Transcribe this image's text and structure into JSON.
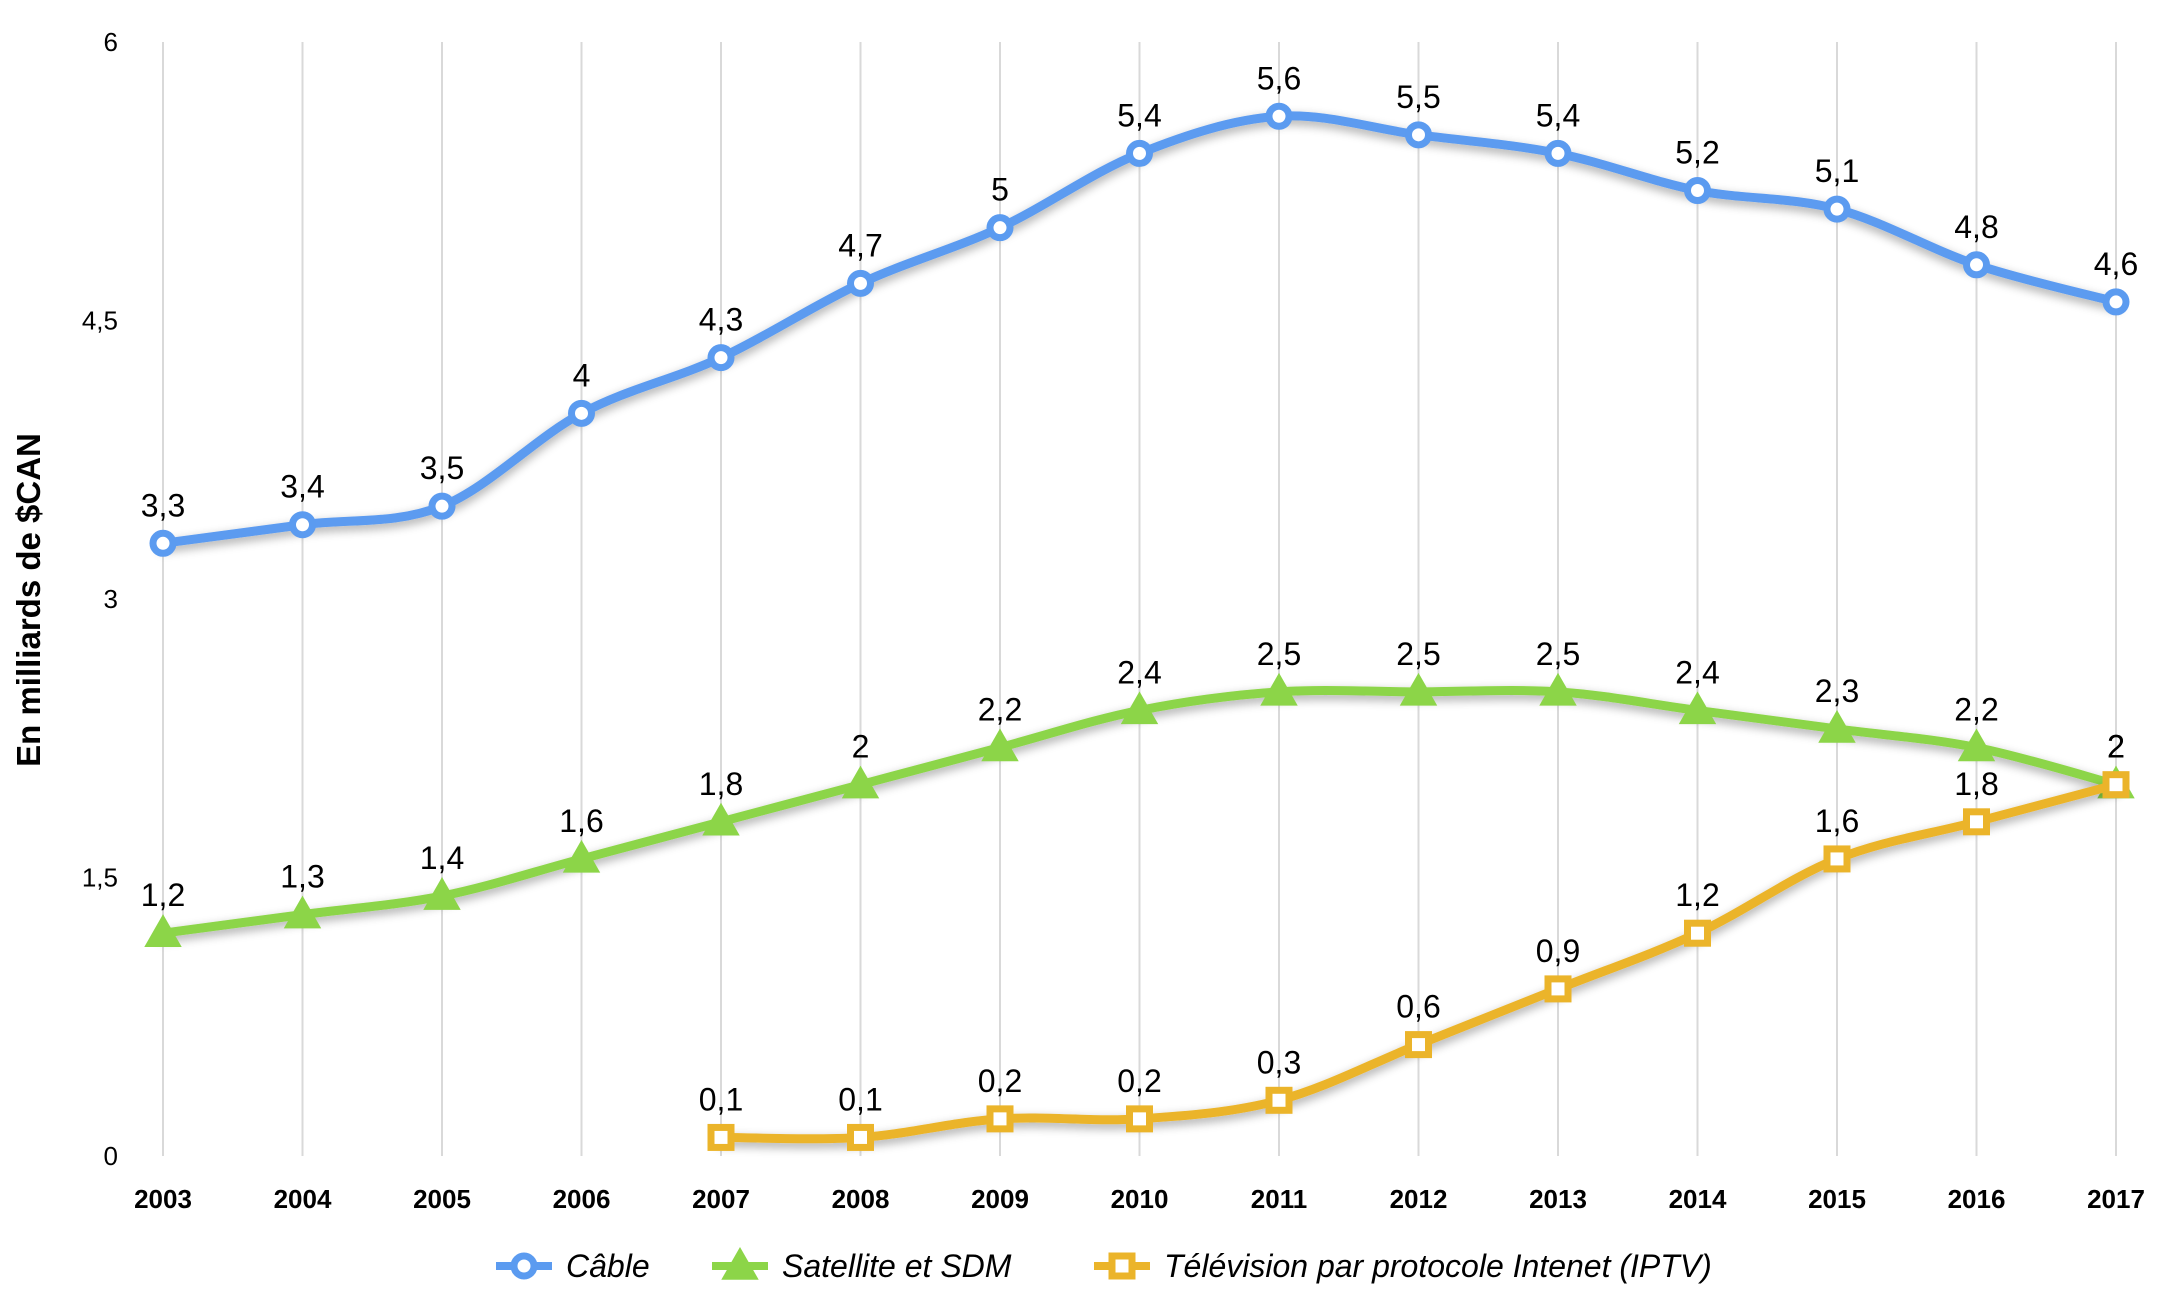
{
  "chart_data": {
    "type": "line",
    "title": "",
    "xlabel": "",
    "ylabel": "En milliards de $CAN",
    "categories": [
      "2003",
      "2004",
      "2005",
      "2006",
      "2007",
      "2008",
      "2009",
      "2010",
      "2011",
      "2012",
      "2013",
      "2014",
      "2015",
      "2016",
      "2017"
    ],
    "ylim": [
      0,
      6
    ],
    "yticks": [
      0,
      1.5,
      3,
      4.5,
      6
    ],
    "ytick_labels": [
      "0",
      "1,5",
      "3",
      "4,5",
      "6"
    ],
    "grid": "vertical",
    "legend_position": "bottom",
    "series": [
      {
        "name": "Câble",
        "color": "#5B9BF0",
        "marker": "circle",
        "values": [
          3.3,
          3.4,
          3.5,
          4,
          4.3,
          4.7,
          5,
          5.4,
          5.6,
          5.5,
          5.4,
          5.2,
          5.1,
          4.8,
          4.6
        ],
        "labels": [
          "3,3",
          "3,4",
          "3,5",
          "4",
          "4,3",
          "4,7",
          "5",
          "5,4",
          "5,6",
          "5,5",
          "5,4",
          "5,2",
          "5,1",
          "4,8",
          "4,6"
        ]
      },
      {
        "name": "Satellite et SDM",
        "color": "#8CD548",
        "marker": "triangle",
        "values": [
          1.2,
          1.3,
          1.4,
          1.6,
          1.8,
          2,
          2.2,
          2.4,
          2.5,
          2.5,
          2.5,
          2.4,
          2.3,
          2.2,
          2
        ],
        "labels": [
          "1,2",
          "1,3",
          "1,4",
          "1,6",
          "1,8",
          "2",
          "2,2",
          "2,4",
          "2,5",
          "2,5",
          "2,5",
          "2,4",
          "2,3",
          "2,2",
          "2"
        ]
      },
      {
        "name": "Télévision par protocole Intenet (IPTV)",
        "color": "#EBB42A",
        "marker": "square",
        "values": [
          null,
          null,
          null,
          null,
          0.1,
          0.1,
          0.2,
          0.2,
          0.3,
          0.6,
          0.9,
          1.2,
          1.6,
          1.8,
          2
        ],
        "labels": [
          "",
          "",
          "",
          "",
          "0,1",
          "0,1",
          "0,2",
          "0,2",
          "0,3",
          "0,6",
          "0,9",
          "1,2",
          "1,6",
          "1,8",
          "2"
        ]
      }
    ]
  }
}
